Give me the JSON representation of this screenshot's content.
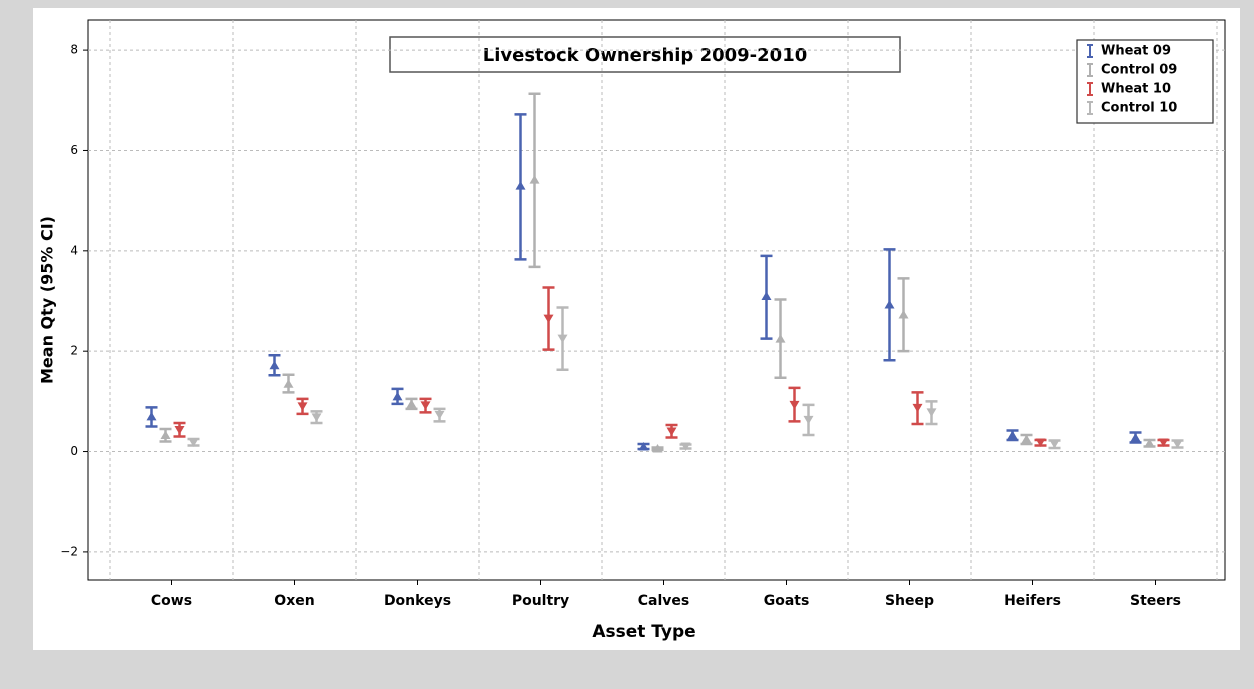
{
  "chart_data": {
    "type": "errorbar",
    "title": "Livestock Ownership 2009-2010",
    "x_label": "Asset Type",
    "y_label": "Mean Qty (95% CI)",
    "categories": [
      "Cows",
      "Oxen",
      "Donkeys",
      "Poultry",
      "Calves",
      "Goats",
      "Sheep",
      "Heifers",
      "Steers"
    ],
    "ylim": [
      -2.56,
      8.6
    ],
    "yticks": [
      {
        "value": -2,
        "label": "−2"
      },
      0,
      2,
      4,
      6,
      8
    ],
    "grid": true,
    "legend": "top-right",
    "series": [
      {
        "name": "Wheat 09",
        "color": "#4a63b0",
        "marker": "triangle-up",
        "values": [
          0.7,
          1.72,
          1.1,
          5.3,
          0.1,
          3.1,
          2.93,
          0.33,
          0.28
        ],
        "lower": [
          0.5,
          1.52,
          0.95,
          3.83,
          0.05,
          2.25,
          1.82,
          0.23,
          0.18
        ],
        "upper": [
          0.88,
          1.92,
          1.25,
          6.72,
          0.15,
          3.9,
          4.03,
          0.42,
          0.38
        ]
      },
      {
        "name": "Control 09",
        "color": "#b0b0b0",
        "marker": "triangle-up",
        "values": [
          0.33,
          1.35,
          0.95,
          5.42,
          0.06,
          2.25,
          2.73,
          0.25,
          0.17
        ],
        "lower": [
          0.2,
          1.18,
          0.85,
          3.68,
          0.03,
          1.47,
          2.0,
          0.15,
          0.1
        ],
        "upper": [
          0.45,
          1.53,
          1.05,
          7.13,
          0.08,
          3.03,
          3.45,
          0.33,
          0.23
        ]
      },
      {
        "name": "Wheat 10",
        "color": "#d04a4a",
        "marker": "triangle-down",
        "values": [
          0.43,
          0.9,
          0.92,
          2.65,
          0.4,
          0.93,
          0.87,
          0.18,
          0.18
        ],
        "lower": [
          0.3,
          0.75,
          0.78,
          2.03,
          0.28,
          0.6,
          0.55,
          0.12,
          0.12
        ],
        "upper": [
          0.57,
          1.05,
          1.05,
          3.27,
          0.53,
          1.27,
          1.18,
          0.23,
          0.23
        ]
      },
      {
        "name": "Control 10",
        "color": "#b8b8b8",
        "marker": "triangle-down",
        "values": [
          0.18,
          0.68,
          0.73,
          2.25,
          0.1,
          0.63,
          0.78,
          0.15,
          0.15
        ],
        "lower": [
          0.12,
          0.57,
          0.6,
          1.63,
          0.06,
          0.33,
          0.55,
          0.07,
          0.08
        ],
        "upper": [
          0.25,
          0.8,
          0.85,
          2.87,
          0.14,
          0.93,
          1.0,
          0.22,
          0.22
        ]
      }
    ]
  }
}
